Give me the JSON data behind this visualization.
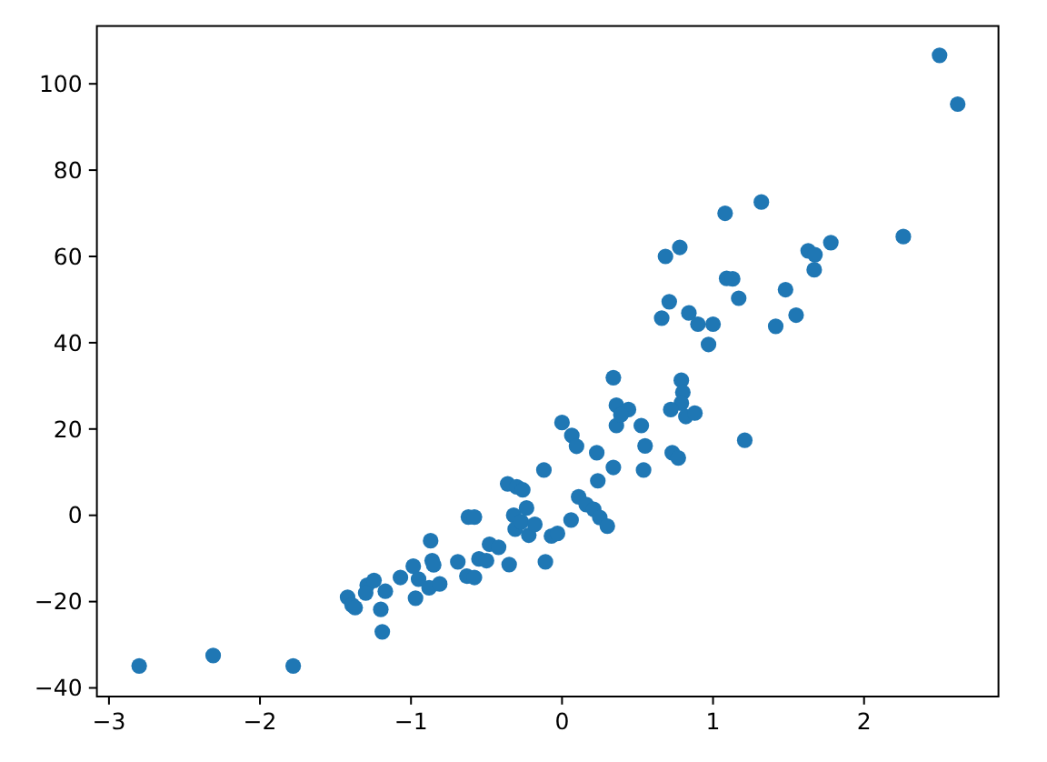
{
  "chart_data": {
    "type": "scatter",
    "color": "#1f77b4",
    "marker": "circle",
    "x": [
      -2.8,
      -2.31,
      -1.78,
      -1.42,
      -1.39,
      -1.37,
      -1.29,
      -1.245,
      -1.3,
      -1.17,
      -1.2,
      -1.19,
      -1.07,
      -0.985,
      -0.95,
      -0.97,
      -0.87,
      -0.86,
      -0.85,
      -0.88,
      -0.81,
      -0.69,
      -0.63,
      -0.58,
      -0.62,
      -0.58,
      -0.55,
      -0.5,
      -0.48,
      -0.42,
      -0.35,
      -0.36,
      -0.3,
      -0.26,
      -0.235,
      -0.32,
      -0.31,
      -0.27,
      -0.22,
      -0.18,
      -0.12,
      -0.11,
      -0.07,
      -0.03,
      0.06,
      0.0,
      0.065,
      0.096,
      0.11,
      0.16,
      0.21,
      0.25,
      0.3,
      0.23,
      0.237,
      0.34,
      0.34,
      0.36,
      0.44,
      0.36,
      0.39,
      0.525,
      0.55,
      0.54,
      0.73,
      0.77,
      0.79,
      0.8,
      0.79,
      0.72,
      0.82,
      0.88,
      1.21,
      0.66,
      0.71,
      0.685,
      0.78,
      0.84,
      0.9,
      1.0,
      0.97,
      1.08,
      1.32,
      1.09,
      1.13,
      1.17,
      1.415,
      1.48,
      1.55,
      1.63,
      1.675,
      1.67,
      1.78,
      2.26,
      2.5,
      2.62
    ],
    "values": [
      -34.9,
      -32.5,
      -34.9,
      -19.0,
      -20.8,
      -21.4,
      -16.2,
      -15.1,
      -18.0,
      -17.6,
      -21.8,
      -27.0,
      -14.4,
      -11.8,
      -14.8,
      -19.2,
      -5.9,
      -10.5,
      -11.5,
      -16.8,
      -15.9,
      -10.8,
      -14.1,
      -14.4,
      -0.4,
      -0.4,
      -10.1,
      -10.5,
      -6.7,
      -7.4,
      -11.4,
      7.3,
      6.6,
      5.9,
      1.7,
      0.0,
      -3.2,
      -1.5,
      -4.6,
      -2.1,
      10.5,
      -10.8,
      -4.8,
      -4.2,
      -1.1,
      21.5,
      18.5,
      16.0,
      4.3,
      2.5,
      1.4,
      -0.5,
      -2.5,
      14.5,
      8.0,
      11.1,
      31.9,
      25.5,
      24.5,
      20.8,
      23.3,
      20.8,
      16.1,
      10.5,
      14.5,
      13.3,
      31.3,
      28.5,
      26.0,
      24.5,
      22.9,
      23.7,
      17.4,
      45.7,
      49.5,
      60.0,
      62.1,
      46.9,
      44.3,
      44.3,
      39.6,
      70.0,
      72.6,
      54.9,
      54.8,
      50.3,
      43.8,
      52.3,
      46.4,
      61.3,
      60.4,
      56.9,
      63.2,
      64.6,
      106.6,
      95.3
    ],
    "xlim": [
      -3.08,
      2.89
    ],
    "ylim": [
      -42,
      113.4
    ],
    "xticks": [
      {
        "value": -3,
        "label": "−3"
      },
      {
        "value": -2,
        "label": "−2"
      },
      {
        "value": -1,
        "label": "−1"
      },
      0,
      1,
      2
    ],
    "yticks": [
      {
        "value": -40,
        "label": "−40"
      },
      {
        "value": -20,
        "label": "−20"
      },
      0,
      20,
      40,
      60,
      80,
      100
    ]
  }
}
